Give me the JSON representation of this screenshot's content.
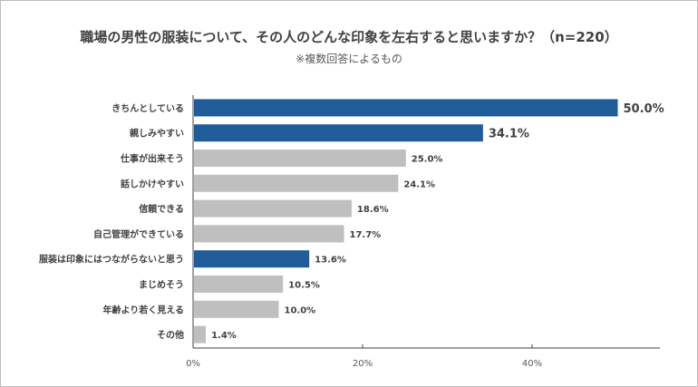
{
  "chart_data": {
    "type": "bar",
    "orientation": "horizontal",
    "title": "職場の男性の服装について、その人のどんな印象を左右すると思いますか？（n=220）",
    "subtitle": "※複数回答によるもの",
    "xlabel": "",
    "ylabel": "",
    "xlim": [
      0,
      55
    ],
    "x_ticks": [
      {
        "value": 0,
        "label": "0%"
      },
      {
        "value": 20,
        "label": "20%"
      },
      {
        "value": 40,
        "label": "40%"
      }
    ],
    "grid": false,
    "categories": [
      "きちんとしている",
      "親しみやすい",
      "仕事が出来そう",
      "話しかけやすい",
      "信頼できる",
      "自己管理ができている",
      "服装は印象にはつながらないと思う",
      "まじめそう",
      "年齢より若く見える",
      "その他"
    ],
    "values": [
      50.0,
      34.1,
      25.0,
      24.1,
      18.6,
      17.7,
      13.6,
      10.5,
      10.0,
      1.4
    ],
    "value_labels": [
      "50.0%",
      "34.1%",
      "25.0%",
      "24.1%",
      "18.6%",
      "17.7%",
      "13.6%",
      "10.5%",
      "10.0%",
      "1.4%"
    ],
    "highlighted": [
      true,
      true,
      false,
      false,
      false,
      false,
      true,
      false,
      false,
      false
    ],
    "colors": {
      "highlight": "#1f5c99",
      "default": "#bfbfbf",
      "axis": "#404040",
      "text": "#404040"
    }
  }
}
